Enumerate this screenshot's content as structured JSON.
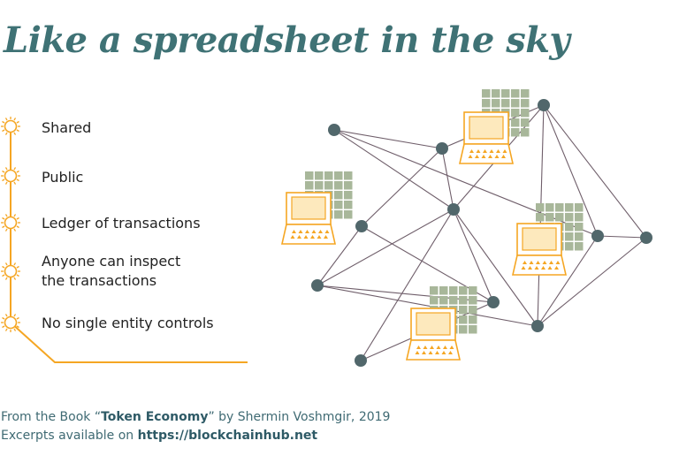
{
  "title": "Like a spreadsheet in the sky",
  "bullets": [
    "Shared",
    "Public",
    "Ledger of transactions",
    "Anyone can inspect\nthe transactions",
    "No single entity controls"
  ],
  "footer": {
    "line1_prefix": "From the Book “",
    "book_title": "Token Economy",
    "line1_suffix": "” by Shermin Voshmgir, 2019",
    "line2_prefix": "Excerpts available on ",
    "url": "https://blockchainhub.net"
  },
  "colors": {
    "title": "#3f7275",
    "accent_orange": "#f5a623",
    "node": "#51676b",
    "edge": "#6f5e6a",
    "grid": "#a8b79a",
    "laptop_fill": "#fde9bd"
  },
  "icons": [
    "sun-icon",
    "laptop-icon",
    "ledger-grid-icon",
    "network-node"
  ]
}
